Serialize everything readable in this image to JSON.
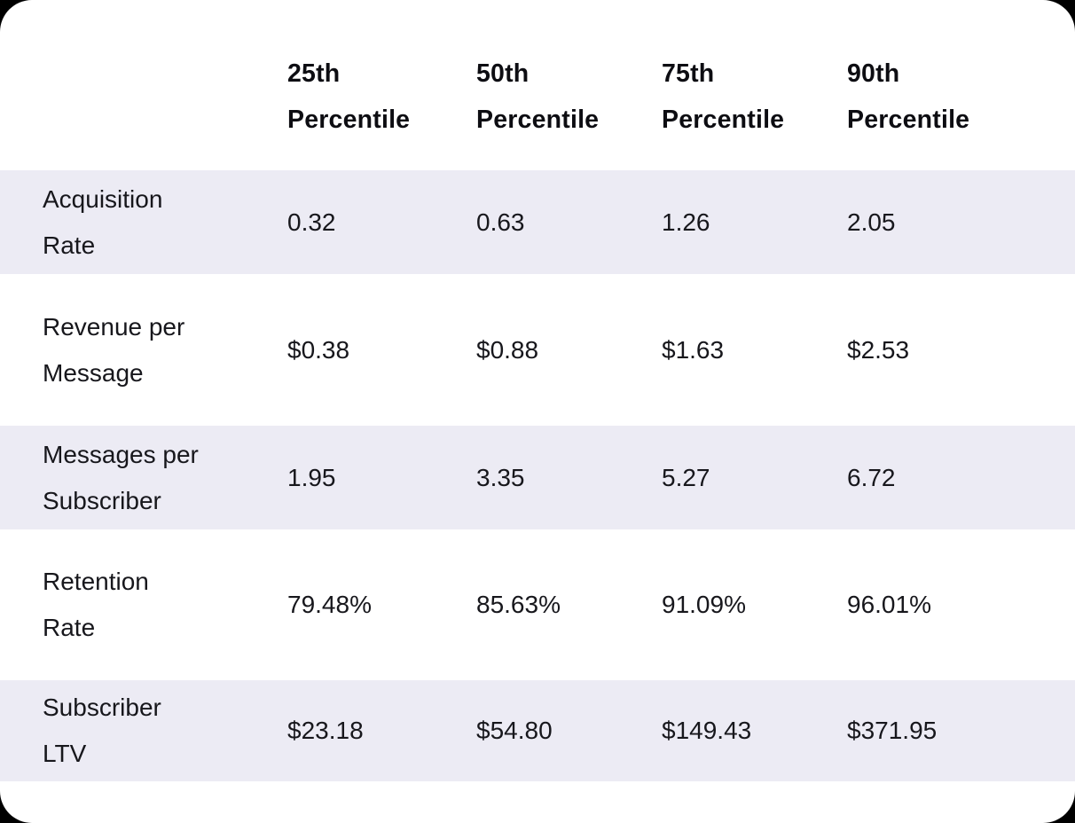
{
  "table": {
    "colors": {
      "stripe": "#ECEBF4",
      "card_bg": "#FFFFFF",
      "header_text": "#0D0D12",
      "body_text": "#17171C"
    },
    "columns": [
      {
        "line1": "25th",
        "line2": "Percentile"
      },
      {
        "line1": "50th",
        "line2": "Percentile"
      },
      {
        "line1": "75th",
        "line2": "Percentile"
      },
      {
        "line1": "90th",
        "line2": "Percentile"
      }
    ],
    "rows": [
      {
        "label_line1": "Acquisition",
        "label_line2": "Rate",
        "values": [
          "0.32",
          "0.63",
          "1.26",
          "2.05"
        ]
      },
      {
        "label_line1": "Revenue per",
        "label_line2": "Message",
        "values": [
          "$0.38",
          "$0.88",
          "$1.63",
          "$2.53"
        ]
      },
      {
        "label_line1": "Messages per",
        "label_line2": "Subscriber",
        "values": [
          "1.95",
          "3.35",
          "5.27",
          "6.72"
        ]
      },
      {
        "label_line1": "Retention",
        "label_line2": "Rate",
        "values": [
          "79.48%",
          "85.63%",
          "91.09%",
          "96.01%"
        ]
      },
      {
        "label_line1": "Subscriber",
        "label_line2": "LTV",
        "values": [
          "$23.18",
          "$54.80",
          "$149.43",
          "$371.95"
        ]
      }
    ]
  },
  "chart_data": {
    "type": "table",
    "title": "",
    "columns": [
      "25th Percentile",
      "50th Percentile",
      "75th Percentile",
      "90th Percentile"
    ],
    "rows": [
      {
        "metric": "Acquisition Rate",
        "values": [
          0.32,
          0.63,
          1.26,
          2.05
        ],
        "format": "number"
      },
      {
        "metric": "Revenue per Message",
        "values": [
          0.38,
          0.88,
          1.63,
          2.53
        ],
        "format": "usd"
      },
      {
        "metric": "Messages per Subscriber",
        "values": [
          1.95,
          3.35,
          5.27,
          6.72
        ],
        "format": "number"
      },
      {
        "metric": "Retention Rate",
        "values": [
          79.48,
          85.63,
          91.09,
          96.01
        ],
        "format": "percent"
      },
      {
        "metric": "Subscriber LTV",
        "values": [
          23.18,
          54.8,
          149.43,
          371.95
        ],
        "format": "usd"
      }
    ],
    "layout_hints": {
      "striped_rows": [
        0,
        2,
        4
      ],
      "stripe_color": "#ECEBF4",
      "header_position": "top"
    }
  }
}
